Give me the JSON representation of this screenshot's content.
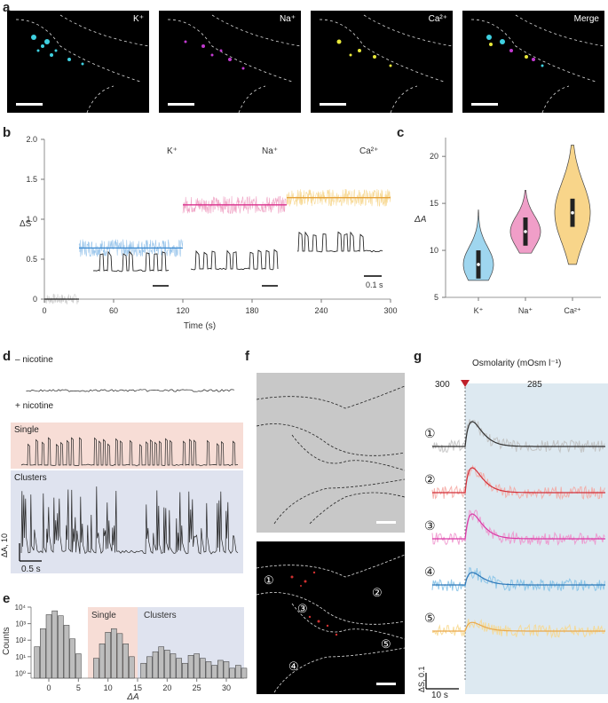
{
  "panel_labels": {
    "a": "a",
    "b": "b",
    "c": "c",
    "d": "d",
    "e": "e",
    "f": "f",
    "g": "g"
  },
  "panel_a": {
    "images": [
      {
        "label": "K⁺",
        "color": "#3fd0e0"
      },
      {
        "label": "Na⁺",
        "color": "#c23ad0"
      },
      {
        "label": "Ca²⁺",
        "color": "#e8e83a"
      },
      {
        "label": "Merge",
        "color": "mixed"
      }
    ]
  },
  "panel_b": {
    "ylabel": "ΔS",
    "xlabel": "Time (s)",
    "xticks": [
      "0",
      "60",
      "120",
      "180",
      "240",
      "300"
    ],
    "yticks": [
      "0",
      "0.5",
      "1.0",
      "1.5",
      "2.0"
    ],
    "segments": [
      {
        "name": "",
        "x_start": 0,
        "x_end": 30,
        "level": 0.0,
        "color": "#bdbdbd"
      },
      {
        "name": "K⁺",
        "x_start": 30,
        "x_end": 120,
        "level": 0.64,
        "color": "#7fb7e6"
      },
      {
        "name": "Na⁺",
        "x_start": 120,
        "x_end": 210,
        "level": 1.18,
        "color": "#ec8fb8"
      },
      {
        "name": "Ca²⁺",
        "x_start": 210,
        "x_end": 300,
        "level": 1.27,
        "color": "#f5cf7a"
      }
    ],
    "segment_labels": [
      "K⁺",
      "Na⁺",
      "Ca²⁺"
    ],
    "scale_label": "0.1 s"
  },
  "chart_data": [
    {
      "type": "violin",
      "ylabel": "ΔA",
      "categories": [
        "K⁺",
        "Na⁺",
        "Ca²⁺"
      ],
      "ylim": [
        5,
        22
      ],
      "yticks": [
        "5",
        "10",
        "15",
        "20"
      ],
      "medians": [
        8.5,
        12.0,
        14.0
      ],
      "ranges": [
        [
          6.8,
          14.3
        ],
        [
          9.7,
          16.4
        ],
        [
          8.5,
          21.2
        ]
      ],
      "colors": [
        "#9fd6ef",
        "#f09ec8",
        "#f8d58a"
      ]
    },
    {
      "type": "bar",
      "xlabel": "ΔA",
      "ylabel": "Counts",
      "xticks": [
        "0",
        "5",
        "10",
        "15",
        "20",
        "25",
        "30"
      ],
      "yticks": [
        "10⁰",
        "10¹",
        "10²",
        "10³",
        "10⁴"
      ],
      "regions": [
        {
          "name": "Single",
          "x": [
            7,
            15
          ],
          "color": "#f7ddd6"
        },
        {
          "name": "Clusters",
          "x": [
            15,
            33
          ],
          "color": "#dfe3ef"
        }
      ],
      "x": [
        -2,
        -1,
        0,
        1,
        2,
        3,
        4,
        5,
        8,
        9,
        10,
        11,
        12,
        13,
        14,
        16,
        17,
        18,
        19,
        20,
        21,
        22,
        23,
        24,
        25,
        26,
        27,
        28,
        29,
        30,
        31,
        32,
        33
      ],
      "values": [
        40,
        500,
        3500,
        6000,
        3000,
        800,
        120,
        15,
        8,
        60,
        300,
        500,
        250,
        60,
        10,
        4,
        10,
        20,
        40,
        25,
        15,
        8,
        4,
        12,
        15,
        8,
        5,
        3,
        6,
        5,
        2,
        3,
        2
      ]
    }
  ],
  "panel_d": {
    "minus_label": "– nicotine",
    "plus_label": "+ nicotine",
    "single_label": "Single",
    "clusters_label": "Clusters",
    "scale_y": "ΔA, 10",
    "scale_x": "0.5 s"
  },
  "panel_f": {
    "cell_numbers": [
      "①",
      "②",
      "③",
      "④",
      "⑤"
    ]
  },
  "panel_g": {
    "title": "Osmolarity (mOsm l⁻¹)",
    "left_value": "300",
    "right_value": "285",
    "traces": [
      {
        "num": "①",
        "color": "#bdbdbd",
        "line": "#333333",
        "peak": 1.0
      },
      {
        "num": "②",
        "color": "#f5a6a0",
        "line": "#d2303a",
        "peak": 1.0
      },
      {
        "num": "③",
        "color": "#ee8fcb",
        "line": "#d93aa6",
        "peak": 1.0
      },
      {
        "num": "④",
        "color": "#7fbfe6",
        "line": "#2e78b8",
        "peak": 0.5
      },
      {
        "num": "⑤",
        "color": "#f8d78a",
        "line": "#e9a84a",
        "peak": 0.35
      }
    ],
    "scale_y": "ΔS, 0.1",
    "scale_x": "10 s"
  }
}
